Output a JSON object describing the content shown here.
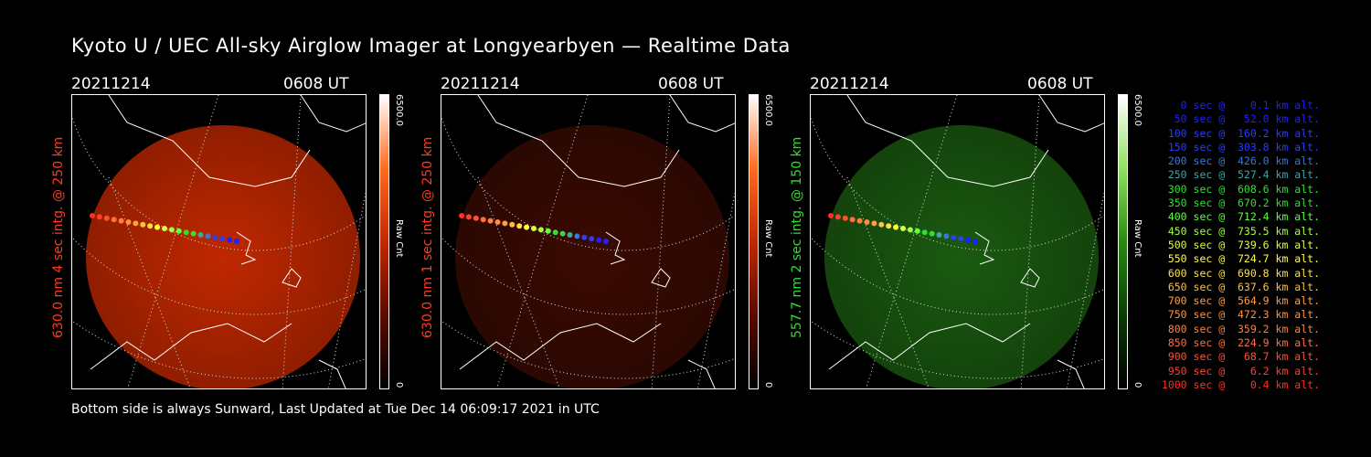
{
  "title": "Kyoto U / UEC All-sky Airglow Imager at Longyearbyen — Realtime Data",
  "footer": "Bottom side is always Sunward, Last Updated at Tue Dec 14 06:09:17 2021 in UTC",
  "panels": [
    {
      "date": "20211214",
      "time": "0608 UT",
      "side_label": "630.0 nm 4 sec intg. @ 250 km",
      "side_color": "#ff3b1f",
      "cbar_max": "6500.0",
      "cbar_min": "0",
      "cbar_unit": "Raw Cnt",
      "image_color": "#c02800"
    },
    {
      "date": "20211214",
      "time": "0608 UT",
      "side_label": "630.0 nm 1 sec intg. @ 250 km",
      "side_color": "#ff3b1f",
      "cbar_max": "6500.0",
      "cbar_min": "0",
      "cbar_unit": "Raw Cnt",
      "image_color": "#3a0a02"
    },
    {
      "date": "20211214",
      "time": "0608 UT",
      "side_label": "557.7 nm 2 sec intg. @ 150 km",
      "side_color": "#30e030",
      "cbar_max": "6500.0",
      "cbar_min": "0",
      "cbar_unit": "Raw Cnt",
      "image_color": "#1a5a10"
    }
  ],
  "legend": [
    {
      "text": "   0 sec @    0.1 km alt.",
      "color": "#2020ff"
    },
    {
      "text": "  50 sec @   52.0 km alt.",
      "color": "#2020ff"
    },
    {
      "text": " 100 sec @  160.2 km alt.",
      "color": "#2a3cff"
    },
    {
      "text": " 150 sec @  303.8 km alt.",
      "color": "#2a3cff"
    },
    {
      "text": " 200 sec @  426.0 km alt.",
      "color": "#3a78d8"
    },
    {
      "text": " 250 sec @  527.4 km alt.",
      "color": "#3aa8a8"
    },
    {
      "text": " 300 sec @  608.6 km alt.",
      "color": "#30e030"
    },
    {
      "text": " 350 sec @  670.2 km alt.",
      "color": "#30e030"
    },
    {
      "text": " 400 sec @  712.4 km alt.",
      "color": "#60ff40"
    },
    {
      "text": " 450 sec @  735.5 km alt.",
      "color": "#a0ff40"
    },
    {
      "text": " 500 sec @  739.6 km alt.",
      "color": "#d8ff40"
    },
    {
      "text": " 550 sec @  724.7 km alt.",
      "color": "#ffff40"
    },
    {
      "text": " 600 sec @  690.8 km alt.",
      "color": "#ffe040"
    },
    {
      "text": " 650 sec @  637.6 km alt.",
      "color": "#ffc040"
    },
    {
      "text": " 700 sec @  564.9 km alt.",
      "color": "#ffa040"
    },
    {
      "text": " 750 sec @  472.3 km alt.",
      "color": "#ff9040"
    },
    {
      "text": " 800 sec @  359.2 km alt.",
      "color": "#ff8040"
    },
    {
      "text": " 850 sec @  224.9 km alt.",
      "color": "#ff7040"
    },
    {
      "text": " 900 sec @   68.7 km alt.",
      "color": "#ff5030"
    },
    {
      "text": " 950 sec @    6.2 km alt.",
      "color": "#ff4030"
    },
    {
      "text": "1000 sec @    0.4 km alt.",
      "color": "#ff3020"
    }
  ]
}
